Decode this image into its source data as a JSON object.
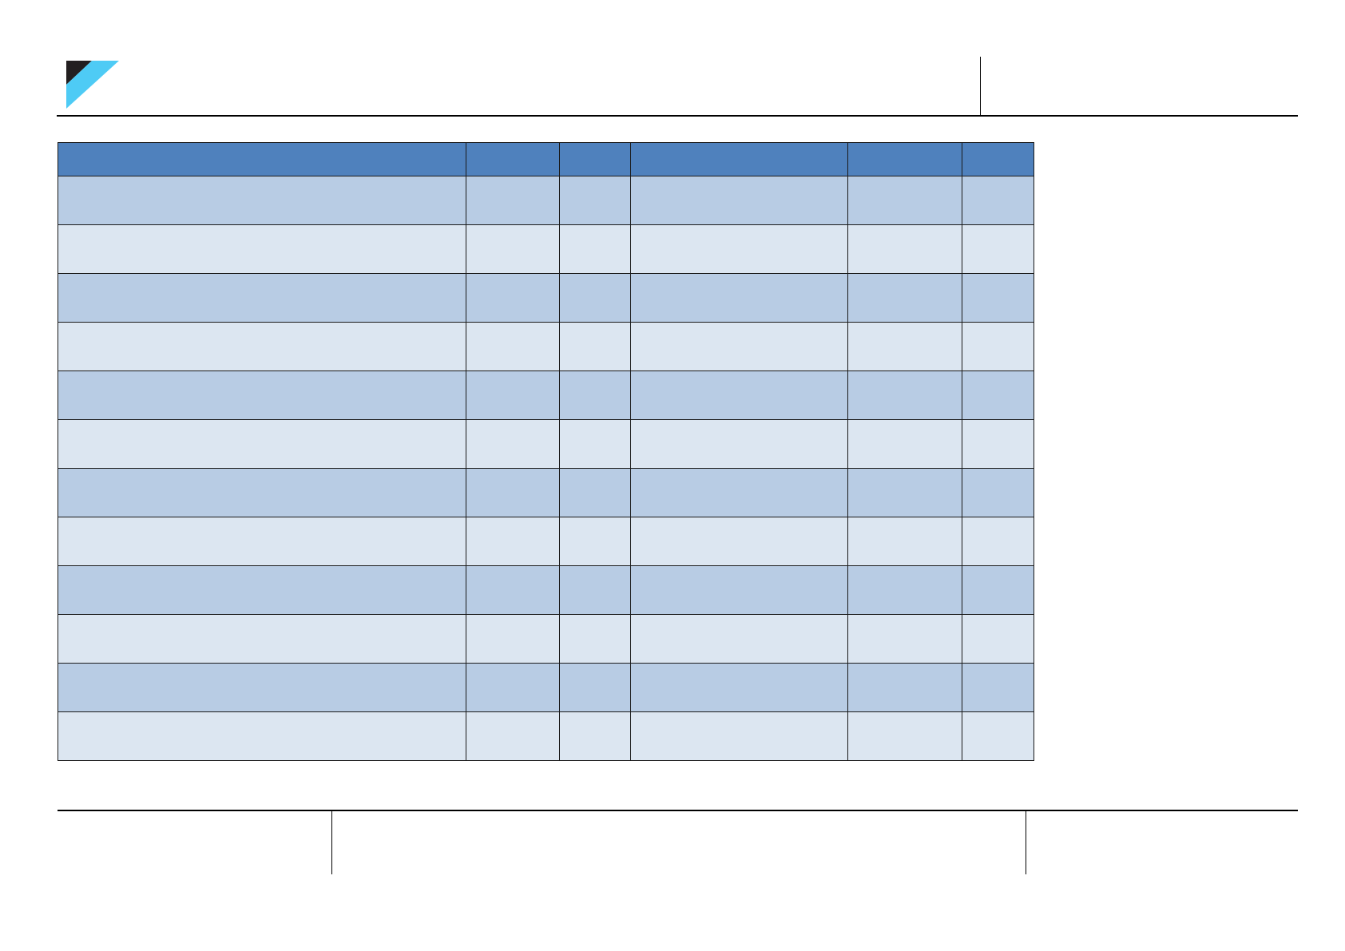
{
  "logo": {
    "colors": {
      "dark": "#231f20",
      "accent": "#4ecbf5"
    }
  },
  "table": {
    "columns": 6,
    "rows": 12,
    "colors": {
      "header": "#4f81bd",
      "row_dark": "#b8cce4",
      "row_light": "#dce6f1",
      "border": "#1a1a1a"
    }
  }
}
